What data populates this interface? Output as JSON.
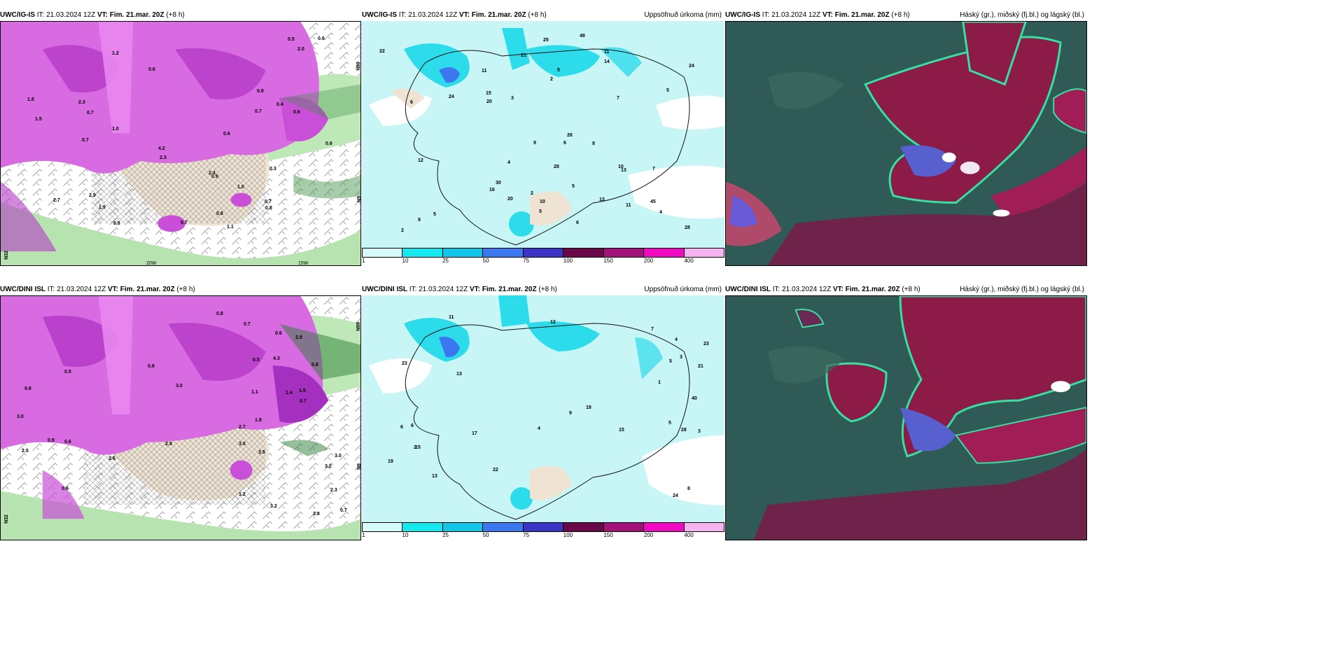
{
  "panels": [
    {
      "model": "UWC/IG-IS",
      "it": "IT: 21.03.2024 12Z",
      "vt_label": "VT:",
      "vt": "Fim. 21.mar. 20Z",
      "lead": "(+8 h)",
      "product": "",
      "axis_labels": [
        "N99",
        "N9",
        "N32",
        "20W",
        "15W"
      ],
      "values": [
        "1.1",
        "1.2",
        "2.9",
        "2.3",
        "0.4",
        "0.8",
        "0.6",
        "1.0",
        "2.3",
        "1.9",
        "2.7",
        "1.8",
        "4.2",
        "2.4",
        "0.7",
        "0.5",
        "1.5",
        "2.0",
        "0.3",
        "0.6",
        "0.7",
        "0.9",
        "0.8",
        "0.8",
        "0.6",
        "0.8",
        "0.7",
        "0.7",
        "0.7",
        "0.6",
        "1.0",
        "0.6"
      ]
    },
    {
      "model": "UWC/IG-IS",
      "it": "IT: 21.03.2024 12Z",
      "vt_label": "VT:",
      "vt": "Fim. 21.mar. 20Z",
      "lead": "(+8 h)",
      "product": "Uppsöfnuð úrkoma (mm)",
      "values": [
        "8",
        "7",
        "26",
        "28",
        "21",
        "48",
        "45",
        "11",
        "11",
        "16",
        "28",
        "20",
        "20",
        "25",
        "13",
        "15",
        "10",
        "12",
        "9",
        "24",
        "22",
        "5",
        "5",
        "8",
        "13",
        "14",
        "3",
        "2",
        "5",
        "5",
        "4",
        "4",
        "5",
        "2",
        "6",
        "6",
        "10",
        "7",
        "6",
        "2",
        "24",
        "30",
        "11"
      ]
    },
    {
      "model": "UWC/IG-IS",
      "it": "IT: 21.03.2024 12Z",
      "vt_label": "VT:",
      "vt": "Fim. 21.mar. 20Z",
      "lead": "(+8 h)",
      "product": "Háský (gr.), miðský (fj.bl.) og lágský (bl.)"
    },
    {
      "model": "UWC/DINI ISL",
      "it": "IT: 21.03.2024 12Z",
      "vt_label": "VT:",
      "vt": "Fim. 21.mar. 20Z",
      "lead": "(+8 h)",
      "product": "",
      "axis_labels": [
        "N99",
        "N9",
        "N32"
      ],
      "values": [
        "3.5",
        "3.0",
        "1.4",
        "3.2",
        "1.2",
        "4.3",
        "1.5",
        "3.0",
        "2.3",
        "3.2",
        "1.8",
        "2.7",
        "2.5",
        "3.5",
        "2.6",
        "3.8",
        "2.9",
        "0.9",
        "0.6",
        "0.8",
        "2.9",
        "3.0",
        "1.1",
        "0.7",
        "0.7",
        "0.6",
        "0.5",
        "0.5",
        "0.7",
        "0.6",
        "0.8",
        "0.8",
        "0.6"
      ]
    },
    {
      "model": "UWC/DINI ISL",
      "it": "IT: 21.03.2024 12Z",
      "vt_label": "VT:",
      "vt": "Fim. 21.mar. 20Z",
      "lead": "(+8 h)",
      "product": "Uppsöfnuð úrkoma (mm)",
      "values": [
        "13",
        "15",
        "23",
        "22",
        "28",
        "40",
        "24",
        "17",
        "13",
        "11",
        "12",
        "19",
        "18",
        "21",
        "5",
        "4",
        "3",
        "6",
        "2",
        "1",
        "4",
        "7",
        "8",
        "15",
        "23",
        "9",
        "5",
        "3",
        "6"
      ]
    },
    {
      "model": "UWC/DINI ISL",
      "it": "IT: 21.03.2024 12Z",
      "vt_label": "VT:",
      "vt": "Fim. 21.mar. 20Z",
      "lead": "(+8 h)",
      "product": "Háský (gr.), miðský (fj.bl.) og lágský (bl.)"
    }
  ],
  "precip_legend": {
    "colors": [
      "#d6fbfb",
      "#16e8ef",
      "#11c6e8",
      "#3b78f0",
      "#3c33c7",
      "#6b0849",
      "#a3117b",
      "#f10ac2",
      "#f5b3f2"
    ],
    "ticks": [
      "1",
      "10",
      "25",
      "50",
      "75",
      "100",
      "150",
      "200",
      "400"
    ]
  },
  "colors": {
    "wind_magenta": "#c94fd8",
    "wind_green": "#a6dba0",
    "land": "#efe4d4",
    "precip_bg": "#c8f6f6",
    "cloud_bg": "#2f5a55"
  }
}
